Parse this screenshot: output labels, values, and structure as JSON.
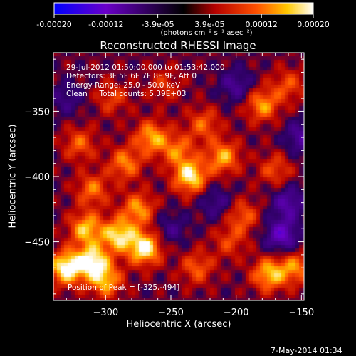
{
  "colorbar": {
    "ticks": [
      "-0.00020",
      "-0.00012",
      "-3.9e-05",
      "3.9e-05",
      "0.00012",
      "0.00020"
    ],
    "unit_label": "(photons cm⁻² s⁻¹ asec⁻²)",
    "colors": [
      "#0000ff",
      "#6a00c8",
      "#000000",
      "#b40000",
      "#ff5000",
      "#ffc800",
      "#ffffff"
    ]
  },
  "footer": {
    "date_stamp": "7-May-2014 01:34"
  },
  "chart_data": {
    "type": "heatmap",
    "title": "Reconstructed RHESSI Image",
    "xlabel": "Heliocentric X (arcsec)",
    "ylabel": "Heliocentric Y (arcsec)",
    "xlim": [
      -340,
      -148
    ],
    "ylim": [
      -495,
      -305
    ],
    "x_ticks": [
      -300,
      -250,
      -200,
      -150
    ],
    "y_ticks": [
      -350,
      -400,
      -450
    ],
    "x_tick_labels": [
      "−300",
      "−250",
      "−200",
      "−150"
    ],
    "y_tick_labels": [
      "−350",
      "−400",
      "−450"
    ],
    "zlim": [
      -0.0002,
      0.0002
    ],
    "info_lines": [
      "29-Jul-2012 01:50:00.000 to 01:53:42.000",
      "Detectors: 3F 5F 6F 7F 8F 9F, Att 0",
      "Energy Range: 25.0 - 50.0 keV",
      "Clean     Total counts: 5.39E+03"
    ],
    "peak_annotation": "Position of Peak = [-325,-494]",
    "peak_position": [
      -325,
      -494
    ],
    "blobs": [
      {
        "x": -330,
        "y": -470,
        "v": 0.00019
      },
      {
        "x": -310,
        "y": -465,
        "v": 0.00017
      },
      {
        "x": -315,
        "y": -440,
        "v": 0.00014
      },
      {
        "x": -290,
        "y": -445,
        "v": 0.00016
      },
      {
        "x": -270,
        "y": -455,
        "v": 0.00018
      },
      {
        "x": -275,
        "y": -425,
        "v": 0.00012
      },
      {
        "x": -300,
        "y": -480,
        "v": 0.00013
      },
      {
        "x": -235,
        "y": -400,
        "v": 0.00017
      },
      {
        "x": -210,
        "y": -385,
        "v": 0.00013
      },
      {
        "x": -245,
        "y": -380,
        "v": 0.0001
      },
      {
        "x": -225,
        "y": -360,
        "v": 9e-05
      },
      {
        "x": -285,
        "y": -390,
        "v": 0.00011
      },
      {
        "x": -265,
        "y": -370,
        "v": 0.00013
      },
      {
        "x": -310,
        "y": -410,
        "v": 0.0001
      },
      {
        "x": -320,
        "y": -375,
        "v": 9e-05
      },
      {
        "x": -180,
        "y": -345,
        "v": 0.00012
      },
      {
        "x": -160,
        "y": -330,
        "v": 8e-05
      },
      {
        "x": -195,
        "y": -430,
        "v": 9e-05
      },
      {
        "x": -175,
        "y": -475,
        "v": 0.00014
      },
      {
        "x": -155,
        "y": -470,
        "v": 0.00011
      },
      {
        "x": -230,
        "y": -470,
        "v": 9e-05
      },
      {
        "x": -205,
        "y": -450,
        "v": 7e-05
      },
      {
        "x": -170,
        "y": -395,
        "v": 8e-05
      },
      {
        "x": -255,
        "y": -330,
        "v": 6e-05
      },
      {
        "x": -295,
        "y": -340,
        "v": 7e-05
      },
      {
        "x": -200,
        "y": -330,
        "v": -8e-05
      },
      {
        "x": -160,
        "y": -420,
        "v": -0.0001
      },
      {
        "x": -165,
        "y": -445,
        "v": -0.00013
      },
      {
        "x": -215,
        "y": -420,
        "v": -7e-05
      },
      {
        "x": -330,
        "y": -340,
        "v": -6e-05
      },
      {
        "x": -250,
        "y": -440,
        "v": -6e-05
      },
      {
        "x": -150,
        "y": -370,
        "v": -9e-05
      }
    ]
  }
}
